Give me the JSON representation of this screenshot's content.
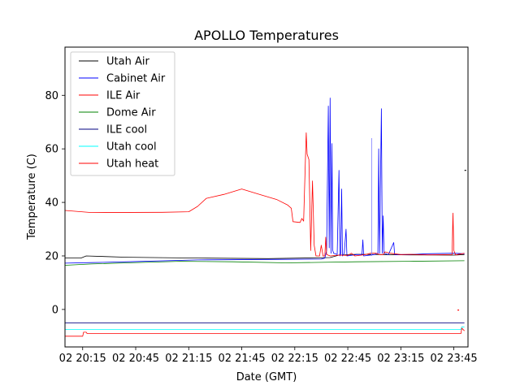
{
  "chart_data": {
    "type": "line",
    "title": "APOLLO Temperatures",
    "xlabel": "Date (GMT)",
    "ylabel": "Temperature (C)",
    "x_unit": "minutes since 20:00 GMT",
    "xlim": [
      5,
      233
    ],
    "ylim": [
      -14,
      98
    ],
    "legend_position": "top-left",
    "x_ticks": [
      {
        "value": 15,
        "label": "02 20:15"
      },
      {
        "value": 45,
        "label": "02 20:45"
      },
      {
        "value": 75,
        "label": "02 21:15"
      },
      {
        "value": 105,
        "label": "02 21:45"
      },
      {
        "value": 135,
        "label": "02 22:15"
      },
      {
        "value": 165,
        "label": "02 22:45"
      },
      {
        "value": 195,
        "label": "02 23:15"
      },
      {
        "value": 225,
        "label": "02 23:45"
      }
    ],
    "y_ticks": [
      {
        "value": 0,
        "label": "0"
      },
      {
        "value": 20,
        "label": "20"
      },
      {
        "value": 40,
        "label": "40"
      },
      {
        "value": 60,
        "label": "60"
      },
      {
        "value": 80,
        "label": "80"
      }
    ],
    "series": [
      {
        "name": "Utah Air",
        "color": "#000000",
        "points": [
          [
            5,
            19.2
          ],
          [
            14,
            19.2
          ],
          [
            17,
            20.0
          ],
          [
            40,
            19.5
          ],
          [
            80,
            19.2
          ],
          [
            120,
            19.0
          ],
          [
            155,
            19.4
          ],
          [
            160,
            20.3
          ],
          [
            170,
            20.6
          ],
          [
            200,
            20.4
          ],
          [
            225,
            20.3
          ],
          [
            231,
            20.5
          ]
        ]
      },
      {
        "name": "Cabinet Air",
        "color": "#0000ff",
        "points": [
          [
            5,
            17.3
          ],
          [
            20,
            17.5
          ],
          [
            40,
            17.8
          ],
          [
            80,
            18.5
          ],
          [
            120,
            18.7
          ],
          [
            150,
            18.8
          ],
          [
            152,
            19.2
          ],
          [
            153,
            22
          ],
          [
            154,
            76
          ],
          [
            154.5,
            23
          ],
          [
            155,
            79
          ],
          [
            155.5,
            21
          ],
          [
            156,
            62
          ],
          [
            156.5,
            22
          ],
          [
            157,
            21
          ],
          [
            159,
            20.5
          ],
          [
            160,
            52
          ],
          [
            160.5,
            20
          ],
          [
            161,
            21
          ],
          [
            161.5,
            45
          ],
          [
            162,
            20
          ],
          [
            163,
            21
          ],
          [
            164,
            30
          ],
          [
            164.5,
            20
          ],
          [
            170,
            20.5
          ],
          [
            173,
            20.5
          ],
          [
            173.5,
            26
          ],
          [
            174,
            20
          ],
          [
            180,
            20.5
          ],
          [
            182,
            21
          ],
          [
            182.5,
            60
          ],
          [
            183,
            21
          ],
          [
            184,
            75
          ],
          [
            184.5,
            21
          ],
          [
            185,
            35
          ],
          [
            185.5,
            21
          ],
          [
            188,
            20.5
          ],
          [
            191,
            25
          ],
          [
            191.5,
            20.5
          ],
          [
            200,
            20.5
          ],
          [
            210,
            20.8
          ],
          [
            225,
            21
          ],
          [
            231,
            20.8
          ]
        ]
      },
      {
        "name": "ILE Air",
        "color": "#ff0000",
        "points": [
          [
            5,
            37
          ],
          [
            20,
            36.2
          ],
          [
            60,
            36.3
          ],
          [
            75,
            36.5
          ],
          [
            80,
            38.5
          ],
          [
            85,
            41.5
          ],
          [
            95,
            43
          ],
          [
            105,
            45
          ],
          [
            115,
            43
          ],
          [
            125,
            41
          ],
          [
            131,
            39
          ],
          [
            133,
            37.8
          ],
          [
            134,
            32.8
          ],
          [
            138,
            32.5
          ],
          [
            139,
            34
          ],
          [
            140,
            33
          ],
          [
            141,
            56
          ],
          [
            141.5,
            66
          ],
          [
            142,
            58
          ],
          [
            143,
            56
          ],
          [
            143.5,
            40
          ],
          [
            144,
            22
          ],
          [
            145,
            48
          ],
          [
            146,
            24
          ],
          [
            147,
            20
          ],
          [
            149,
            20
          ],
          [
            150,
            24
          ],
          [
            151,
            20
          ],
          [
            152,
            20
          ],
          [
            152.5,
            27
          ],
          [
            153,
            20.5
          ],
          [
            155,
            20
          ],
          [
            160,
            20.3
          ],
          [
            165,
            20.2
          ],
          [
            167,
            21
          ],
          [
            169,
            20
          ],
          [
            175,
            20.5
          ],
          [
            178,
            21
          ],
          [
            181,
            21
          ],
          [
            183,
            20.5
          ],
          [
            185,
            20.5
          ],
          [
            186,
            21.5
          ],
          [
            189,
            21
          ],
          [
            195,
            20.5
          ],
          [
            200,
            20.6
          ],
          [
            210,
            20.4
          ],
          [
            224,
            20.5
          ],
          [
            224.5,
            36
          ],
          [
            225,
            22
          ],
          [
            226,
            20.4
          ],
          [
            231,
            21
          ]
        ]
      },
      {
        "name": "Dome Air",
        "color": "#008000",
        "points": [
          [
            5,
            16.5
          ],
          [
            20,
            17.0
          ],
          [
            40,
            17.4
          ],
          [
            70,
            18.0
          ],
          [
            100,
            17.8
          ],
          [
            130,
            17.4
          ],
          [
            150,
            17.6
          ],
          [
            170,
            17.8
          ],
          [
            200,
            18.0
          ],
          [
            231,
            18.2
          ]
        ]
      },
      {
        "name": "ILE cool",
        "color": "#000080",
        "points": [
          [
            5,
            -5
          ],
          [
            231,
            -5
          ]
        ]
      },
      {
        "name": "Utah cool",
        "color": "#00ffff",
        "points": [
          [
            5,
            -7.5
          ],
          [
            229,
            -7.5
          ],
          [
            229.5,
            -6.5
          ],
          [
            231,
            -6.5
          ]
        ]
      },
      {
        "name": "Utah heat",
        "color": "#ff0000",
        "points": [
          [
            5,
            -10
          ],
          [
            15,
            -10
          ],
          [
            15.5,
            -8.5
          ],
          [
            17,
            -8.5
          ],
          [
            17.5,
            -9
          ],
          [
            229,
            -9
          ],
          [
            229.5,
            -7
          ],
          [
            231,
            -8
          ]
        ]
      }
    ],
    "annotations": [
      {
        "x": 178.5,
        "y": 64,
        "color": "#8080ff",
        "text": ""
      },
      {
        "x": 231.5,
        "y": 52,
        "color": "#000000",
        "text": ""
      },
      {
        "x": 227.5,
        "y": -0.2,
        "color": "#ff0000",
        "text": ""
      }
    ]
  }
}
